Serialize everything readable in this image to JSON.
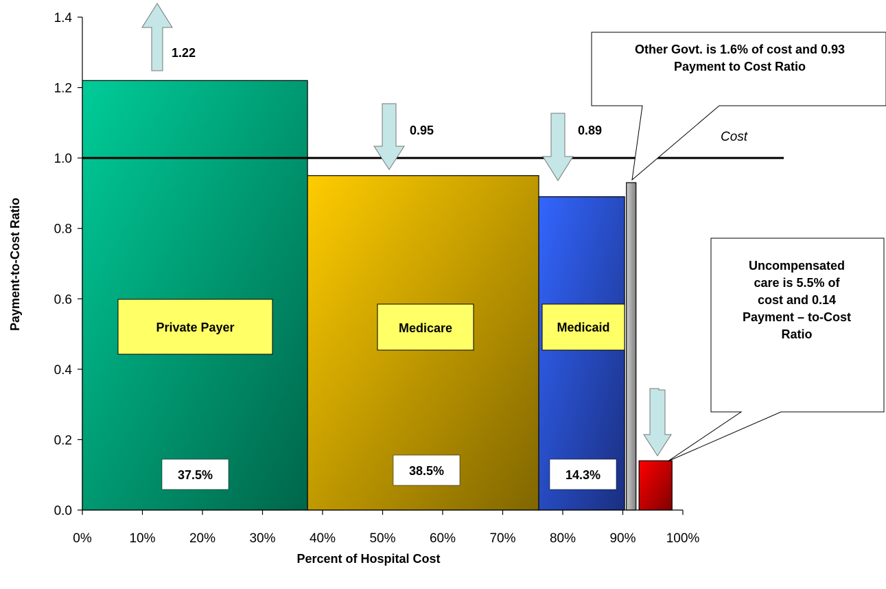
{
  "chart_data": {
    "type": "bar",
    "title": "",
    "xlabel": "Percent of Hospital Cost",
    "ylabel": "Payment-to-Cost Ratio",
    "xlim": [
      0,
      100
    ],
    "ylim": [
      0,
      1.4
    ],
    "x_ticks": [
      "0%",
      "10%",
      "20%",
      "30%",
      "40%",
      "50%",
      "60%",
      "70%",
      "80%",
      "90%",
      "100%"
    ],
    "y_ticks": [
      "0.0",
      "0.2",
      "0.4",
      "0.6",
      "0.8",
      "1.0",
      "1.2",
      "1.4"
    ],
    "cost_line": {
      "value": 1.0,
      "label": "Cost"
    },
    "series": [
      {
        "name": "Private Payer",
        "share": 37.5,
        "share_label": "37.5%",
        "ratio": 1.22,
        "ratio_label": "1.22",
        "color": "#1a9a72"
      },
      {
        "name": "Medicare",
        "share": 38.5,
        "share_label": "38.5%",
        "ratio": 0.95,
        "ratio_label": "0.95",
        "color": "#d9a200"
      },
      {
        "name": "Medicaid",
        "share": 14.3,
        "share_label": "14.3%",
        "ratio": 0.89,
        "ratio_label": "0.89",
        "color": "#2e56d6"
      },
      {
        "name": "",
        "share": 1.6,
        "share_label": "",
        "ratio": 0.93,
        "ratio_label": "",
        "color": "#a6a6a6"
      },
      {
        "name": "",
        "share": 5.5,
        "share_label": "",
        "ratio": 0.14,
        "ratio_label": "",
        "color": "#e00000"
      }
    ],
    "callouts": [
      {
        "text": [
          "Other Govt. is 1.6% of cost and 0.93",
          "Payment to Cost Ratio"
        ]
      },
      {
        "text": [
          "Uncompensated",
          "care is 5.5% of",
          "cost and 0.14",
          "Payment – to-Cost",
          "Ratio"
        ]
      }
    ]
  }
}
